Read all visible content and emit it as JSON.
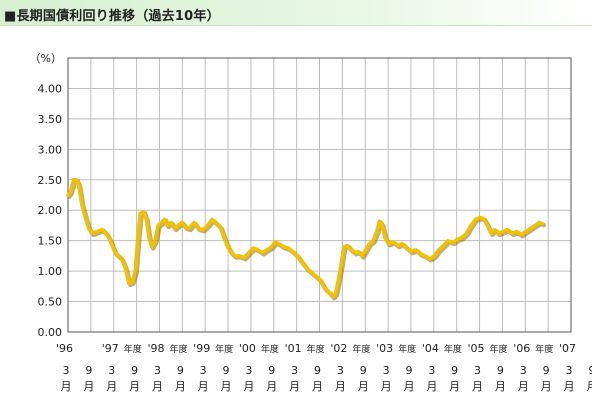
{
  "header": {
    "title": "■長期国債利回り推移（過去10年）"
  },
  "chart_data": {
    "type": "line",
    "title": "長期国債利回り推移（過去10年）",
    "unit_label": "（%）",
    "xlabel": "",
    "ylabel": "（%）",
    "ylim": [
      0,
      4.5
    ],
    "yticks": [
      "0.00",
      "0.50",
      "1.00",
      "1.50",
      "2.00",
      "2.50",
      "3.00",
      "3.50",
      "4.00"
    ],
    "xlim": [
      1996.25,
      2007.25
    ],
    "grid": true,
    "legend": "none",
    "line_color": "#f2c200",
    "year_labels": [
      {
        "x": 1996.25,
        "text": "'96",
        "suffix": ""
      },
      {
        "x": 1997.25,
        "text": "'97",
        "suffix": "年度"
      },
      {
        "x": 1998.25,
        "text": "'98",
        "suffix": "年度"
      },
      {
        "x": 1999.25,
        "text": "'99",
        "suffix": "年度"
      },
      {
        "x": 2000.25,
        "text": "'00",
        "suffix": "年度"
      },
      {
        "x": 2001.25,
        "text": "'01",
        "suffix": "年度"
      },
      {
        "x": 2002.25,
        "text": "'02",
        "suffix": "年度"
      },
      {
        "x": 2003.25,
        "text": "'03",
        "suffix": "年度"
      },
      {
        "x": 2004.25,
        "text": "'04",
        "suffix": "年度"
      },
      {
        "x": 2005.25,
        "text": "'05",
        "suffix": "年度"
      },
      {
        "x": 2006.25,
        "text": "'06",
        "suffix": "年度"
      },
      {
        "x": 2007.25,
        "text": "'07",
        "suffix": ""
      }
    ],
    "month_ticks": [
      {
        "x": 1996.25,
        "m": "3"
      },
      {
        "x": 1996.75,
        "m": "9"
      },
      {
        "x": 1997.25,
        "m": "3"
      },
      {
        "x": 1997.75,
        "m": "9"
      },
      {
        "x": 1998.25,
        "m": "3"
      },
      {
        "x": 1998.75,
        "m": "9"
      },
      {
        "x": 1999.25,
        "m": "3"
      },
      {
        "x": 1999.75,
        "m": "9"
      },
      {
        "x": 2000.25,
        "m": "3"
      },
      {
        "x": 2000.75,
        "m": "9"
      },
      {
        "x": 2001.25,
        "m": "3"
      },
      {
        "x": 2001.75,
        "m": "9"
      },
      {
        "x": 2002.25,
        "m": "3"
      },
      {
        "x": 2002.75,
        "m": "9"
      },
      {
        "x": 2003.25,
        "m": "3"
      },
      {
        "x": 2003.75,
        "m": "9"
      },
      {
        "x": 2004.25,
        "m": "3"
      },
      {
        "x": 2004.75,
        "m": "9"
      },
      {
        "x": 2005.25,
        "m": "3"
      },
      {
        "x": 2005.75,
        "m": "9"
      },
      {
        "x": 2006.25,
        "m": "3"
      },
      {
        "x": 2006.75,
        "m": "9"
      },
      {
        "x": 2007.25,
        "m": "3"
      },
      {
        "x": 2007.75,
        "m": "9"
      }
    ],
    "month_unit": "月",
    "series": [
      {
        "values": [
          [
            1996.25,
            2.25
          ],
          [
            1996.3,
            2.3
          ],
          [
            1996.37,
            2.5
          ],
          [
            1996.43,
            2.5
          ],
          [
            1996.48,
            2.42
          ],
          [
            1996.55,
            2.1
          ],
          [
            1996.62,
            1.9
          ],
          [
            1996.7,
            1.7
          ],
          [
            1996.78,
            1.62
          ],
          [
            1996.88,
            1.65
          ],
          [
            1997.0,
            1.68
          ],
          [
            1997.1,
            1.6
          ],
          [
            1997.2,
            1.45
          ],
          [
            1997.28,
            1.3
          ],
          [
            1997.35,
            1.25
          ],
          [
            1997.42,
            1.2
          ],
          [
            1997.5,
            1.05
          ],
          [
            1997.58,
            0.8
          ],
          [
            1997.65,
            0.82
          ],
          [
            1997.72,
            1.0
          ],
          [
            1997.78,
            1.6
          ],
          [
            1997.83,
            1.95
          ],
          [
            1997.9,
            1.97
          ],
          [
            1997.96,
            1.85
          ],
          [
            1998.02,
            1.55
          ],
          [
            1998.08,
            1.4
          ],
          [
            1998.15,
            1.5
          ],
          [
            1998.22,
            1.75
          ],
          [
            1998.3,
            1.8
          ],
          [
            1998.36,
            1.85
          ],
          [
            1998.42,
            1.75
          ],
          [
            1998.5,
            1.8
          ],
          [
            1998.58,
            1.7
          ],
          [
            1998.66,
            1.75
          ],
          [
            1998.74,
            1.8
          ],
          [
            1998.82,
            1.72
          ],
          [
            1998.9,
            1.7
          ],
          [
            1999.0,
            1.8
          ],
          [
            1999.1,
            1.7
          ],
          [
            1999.2,
            1.68
          ],
          [
            1999.3,
            1.75
          ],
          [
            1999.4,
            1.85
          ],
          [
            1999.5,
            1.78
          ],
          [
            1999.58,
            1.72
          ],
          [
            1999.66,
            1.55
          ],
          [
            1999.74,
            1.4
          ],
          [
            1999.82,
            1.3
          ],
          [
            1999.9,
            1.25
          ],
          [
            2000.0,
            1.25
          ],
          [
            2000.1,
            1.22
          ],
          [
            2000.2,
            1.3
          ],
          [
            2000.3,
            1.38
          ],
          [
            2000.4,
            1.35
          ],
          [
            2000.5,
            1.3
          ],
          [
            2000.6,
            1.35
          ],
          [
            2000.7,
            1.4
          ],
          [
            2000.78,
            1.48
          ],
          [
            2000.86,
            1.45
          ],
          [
            2000.96,
            1.4
          ],
          [
            2001.06,
            1.38
          ],
          [
            2001.16,
            1.32
          ],
          [
            2001.26,
            1.25
          ],
          [
            2001.36,
            1.15
          ],
          [
            2001.46,
            1.05
          ],
          [
            2001.56,
            0.98
          ],
          [
            2001.66,
            0.92
          ],
          [
            2001.76,
            0.85
          ],
          [
            2001.86,
            0.72
          ],
          [
            2001.96,
            0.65
          ],
          [
            2002.04,
            0.58
          ],
          [
            2002.1,
            0.63
          ],
          [
            2002.16,
            0.85
          ],
          [
            2002.22,
            1.1
          ],
          [
            2002.28,
            1.4
          ],
          [
            2002.36,
            1.42
          ],
          [
            2002.44,
            1.35
          ],
          [
            2002.52,
            1.3
          ],
          [
            2002.6,
            1.32
          ],
          [
            2002.68,
            1.25
          ],
          [
            2002.76,
            1.35
          ],
          [
            2002.84,
            1.45
          ],
          [
            2002.92,
            1.5
          ],
          [
            2003.0,
            1.65
          ],
          [
            2003.06,
            1.82
          ],
          [
            2003.12,
            1.75
          ],
          [
            2003.18,
            1.55
          ],
          [
            2003.26,
            1.45
          ],
          [
            2003.36,
            1.48
          ],
          [
            2003.46,
            1.42
          ],
          [
            2003.56,
            1.45
          ],
          [
            2003.66,
            1.38
          ],
          [
            2003.76,
            1.32
          ],
          [
            2003.86,
            1.35
          ],
          [
            2003.96,
            1.28
          ],
          [
            2004.06,
            1.25
          ],
          [
            2004.16,
            1.2
          ],
          [
            2004.26,
            1.25
          ],
          [
            2004.36,
            1.35
          ],
          [
            2004.46,
            1.42
          ],
          [
            2004.56,
            1.5
          ],
          [
            2004.66,
            1.47
          ],
          [
            2004.76,
            1.52
          ],
          [
            2004.86,
            1.55
          ],
          [
            2004.96,
            1.62
          ],
          [
            2005.06,
            1.75
          ],
          [
            2005.16,
            1.85
          ],
          [
            2005.26,
            1.88
          ],
          [
            2005.34,
            1.86
          ],
          [
            2005.42,
            1.75
          ],
          [
            2005.5,
            1.62
          ],
          [
            2005.58,
            1.68
          ],
          [
            2005.66,
            1.62
          ],
          [
            2005.76,
            1.65
          ],
          [
            2005.86,
            1.68
          ],
          [
            2005.96,
            1.62
          ],
          [
            2006.06,
            1.65
          ],
          [
            2006.16,
            1.6
          ],
          [
            2006.26,
            1.65
          ],
          [
            2006.36,
            1.7
          ],
          [
            2006.46,
            1.75
          ],
          [
            2006.56,
            1.8
          ],
          [
            2006.62,
            1.78
          ]
        ]
      }
    ]
  }
}
